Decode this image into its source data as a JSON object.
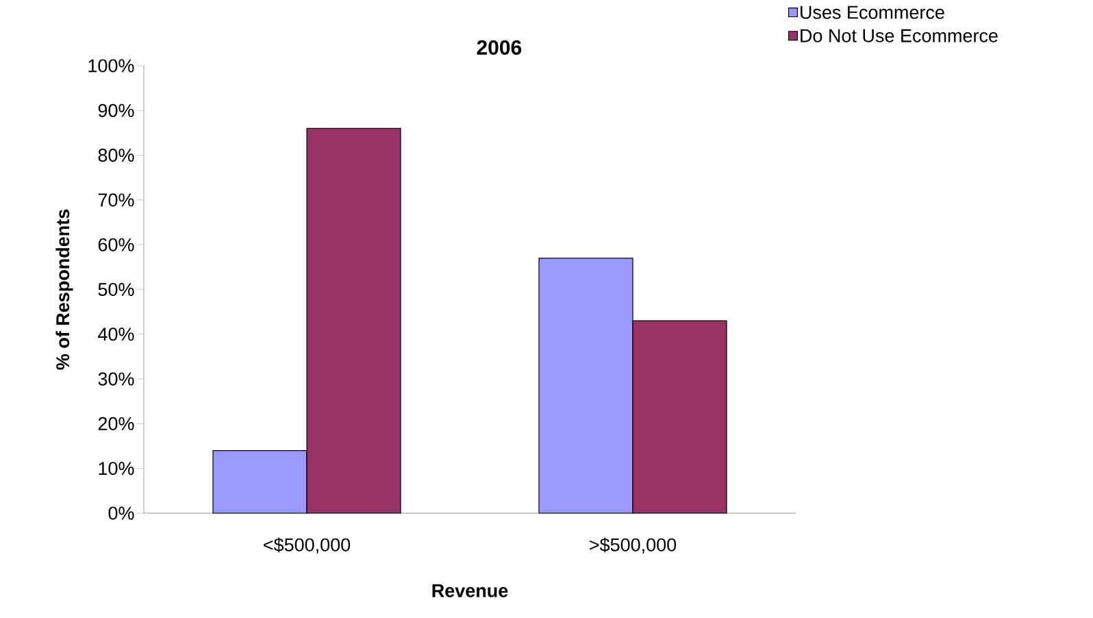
{
  "chart_data": {
    "type": "bar",
    "title": "2006",
    "xlabel": "Revenue",
    "ylabel": "% of Respondents",
    "categories": [
      "<$500,000",
      ">$500,000"
    ],
    "series": [
      {
        "name": "Uses Ecommerce",
        "color": "#9999ff",
        "values": [
          14,
          57
        ]
      },
      {
        "name": "Do Not Use Ecommerce",
        "color": "#993366",
        "values": [
          86,
          43
        ]
      }
    ],
    "ylim": [
      0,
      100
    ],
    "yticks": [
      {
        "value": 0,
        "label": "0%"
      },
      {
        "value": 10,
        "label": "10%"
      },
      {
        "value": 20,
        "label": "20%"
      },
      {
        "value": 30,
        "label": "30%"
      },
      {
        "value": 40,
        "label": "40%"
      },
      {
        "value": 50,
        "label": "50%"
      },
      {
        "value": 60,
        "label": "60%"
      },
      {
        "value": 70,
        "label": "70%"
      },
      {
        "value": 80,
        "label": "80%"
      },
      {
        "value": 90,
        "label": "90%"
      },
      {
        "value": 100,
        "label": "100%"
      }
    ],
    "legend": "top right",
    "grid": false
  }
}
